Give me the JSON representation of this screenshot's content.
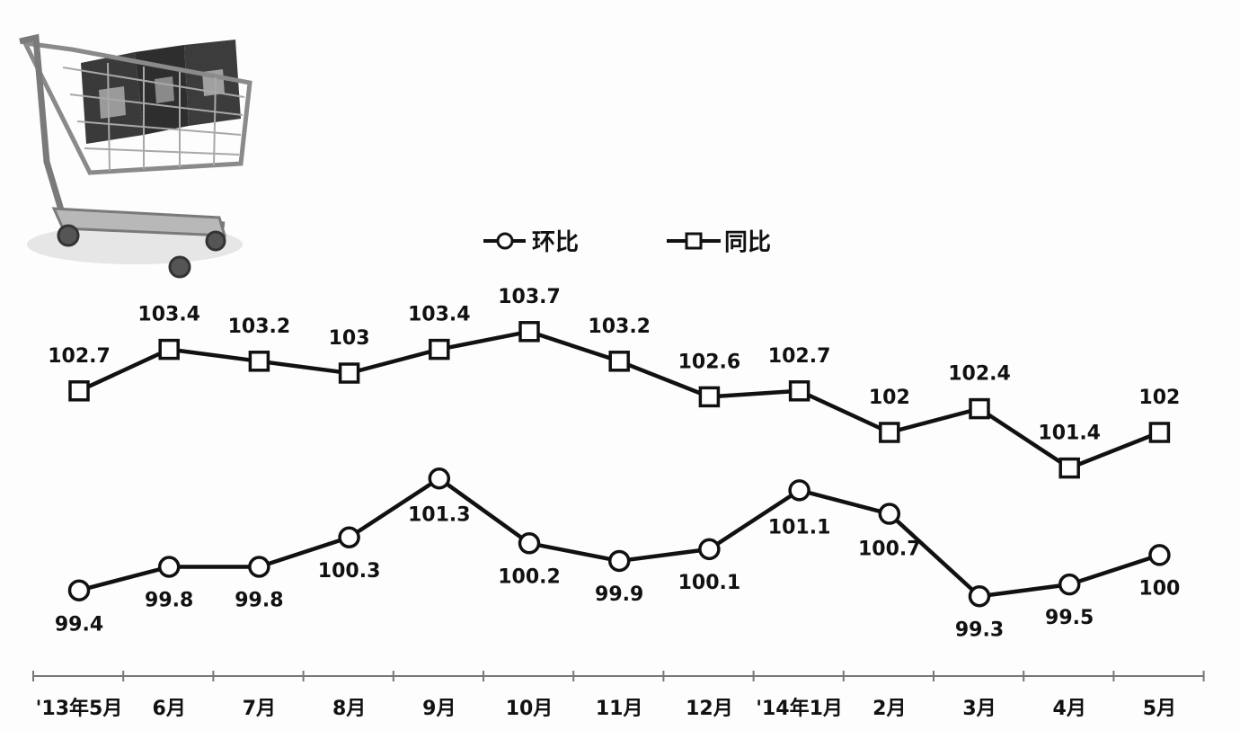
{
  "chart_data": {
    "type": "line",
    "categories": [
      "'13年5月",
      "6月",
      "7月",
      "8月",
      "9月",
      "10月",
      "11月",
      "12月",
      "'14年1月",
      "2月",
      "3月",
      "4月",
      "5月"
    ],
    "series": [
      {
        "name": "环比",
        "marker": "circle",
        "values": [
          99.4,
          99.8,
          99.8,
          100.3,
          101.3,
          100.2,
          99.9,
          100.1,
          101.1,
          100.7,
          99.3,
          99.5,
          100
        ],
        "labels": [
          "99.4",
          "99.8",
          "99.8",
          "100.3",
          "101.3",
          "100.2",
          "99.9",
          "100.1",
          "101.1",
          "100.7",
          "99.3",
          "99.5",
          "100"
        ]
      },
      {
        "name": "同比",
        "marker": "square",
        "values": [
          102.7,
          103.4,
          103.2,
          103,
          103.4,
          103.7,
          103.2,
          102.6,
          102.7,
          102,
          102.4,
          101.4,
          102
        ],
        "labels": [
          "102.7",
          "103.4",
          "103.2",
          "103",
          "103.4",
          "103.7",
          "103.2",
          "102.6",
          "102.7",
          "102",
          "102.4",
          "101.4",
          "102"
        ]
      }
    ],
    "legend_position": "top",
    "grid": false,
    "illustration": "shopping-cart-with-CPI-letters"
  }
}
